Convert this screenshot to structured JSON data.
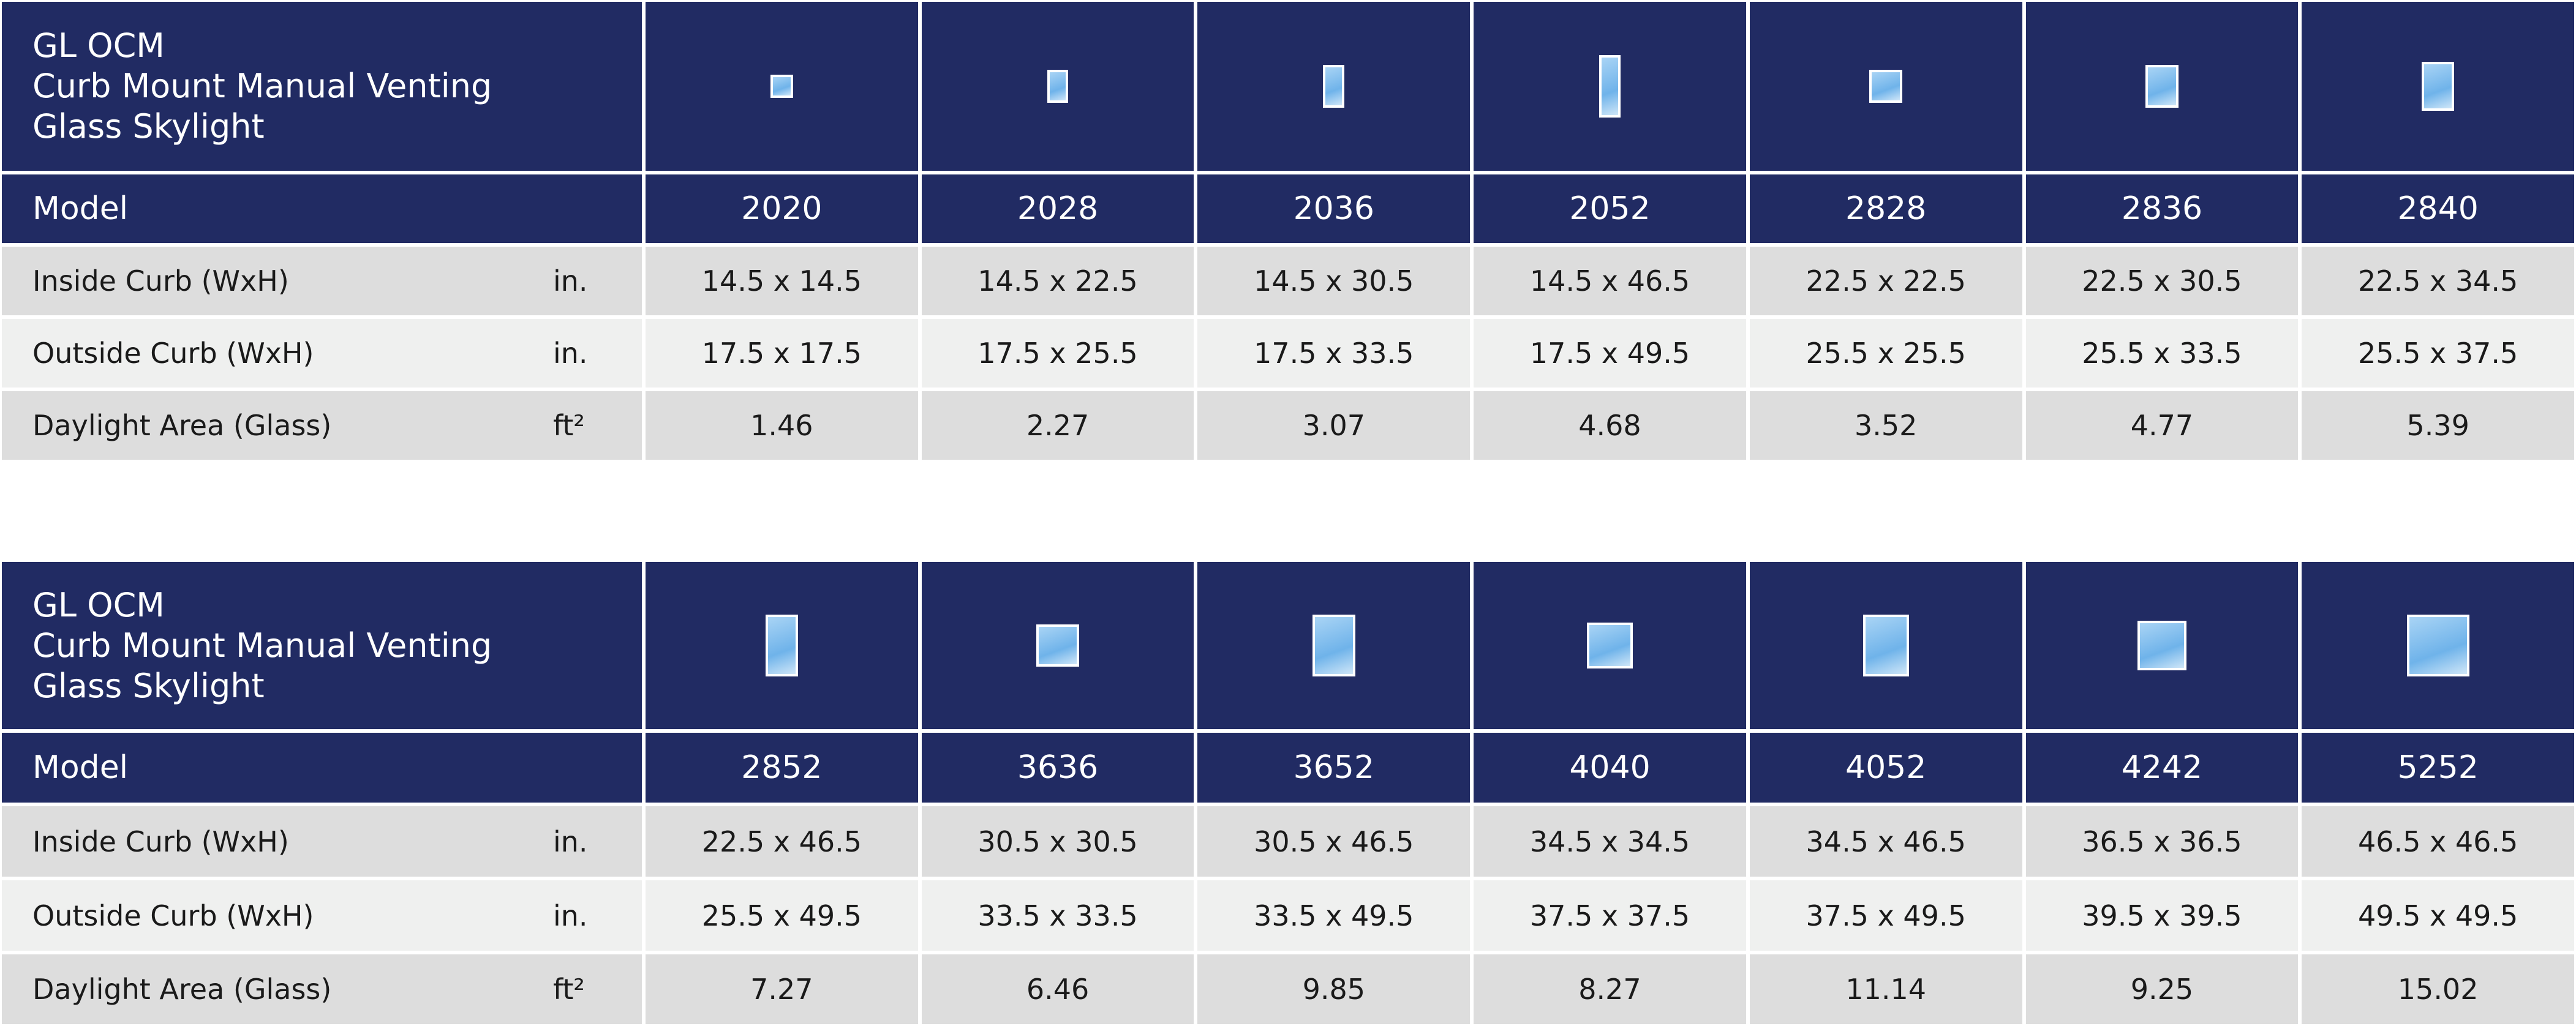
{
  "tables": [
    {
      "title": [
        "GL OCM",
        "Curb Mount Manual Venting",
        "Glass Skylight"
      ],
      "header_label": "Model",
      "models": [
        "2020",
        "2028",
        "2036",
        "2052",
        "2828",
        "2836",
        "2840"
      ],
      "rows": [
        {
          "label": "Inside Curb (WxH)",
          "unit": "in.",
          "values": [
            "14.5 x 14.5",
            "14.5 x 22.5",
            "14.5 x 30.5",
            "14.5 x 46.5",
            "22.5 x 22.5",
            "22.5 x 30.5",
            "22.5 x 34.5"
          ]
        },
        {
          "label": "Outside Curb (WxH)",
          "unit": "in.",
          "values": [
            "17.5 x 17.5",
            "17.5 x 25.5",
            "17.5 x 33.5",
            "17.5 x 49.5",
            "25.5 x 25.5",
            "25.5 x 33.5",
            "25.5 x 37.5"
          ]
        },
        {
          "label": "Daylight Area (Glass)",
          "unit": "ft²",
          "values": [
            "1.46",
            "2.27",
            "3.07",
            "4.68",
            "3.52",
            "4.77",
            "5.39"
          ]
        }
      ]
    },
    {
      "title": [
        "GL OCM",
        "Curb Mount Manual Venting",
        "Glass Skylight"
      ],
      "header_label": "Model",
      "models": [
        "2852",
        "3636",
        "3652",
        "4040",
        "4052",
        "4242",
        "5252"
      ],
      "rows": [
        {
          "label": "Inside Curb (WxH)",
          "unit": "in.",
          "values": [
            "22.5 x 46.5",
            "30.5 x 30.5",
            "30.5 x 46.5",
            "34.5 x 34.5",
            "34.5 x 46.5",
            "36.5 x 36.5",
            "46.5 x 46.5"
          ]
        },
        {
          "label": "Outside Curb (WxH)",
          "unit": "in.",
          "values": [
            "25.5 x 49.5",
            "33.5 x 33.5",
            "33.5 x 49.5",
            "37.5 x 37.5",
            "37.5 x 49.5",
            "39.5 x 39.5",
            "49.5 x 49.5"
          ]
        },
        {
          "label": "Daylight Area (Glass)",
          "unit": "ft²",
          "values": [
            "7.27",
            "6.46",
            "9.85",
            "8.27",
            "11.14",
            "9.25",
            "15.02"
          ]
        }
      ]
    }
  ]
}
